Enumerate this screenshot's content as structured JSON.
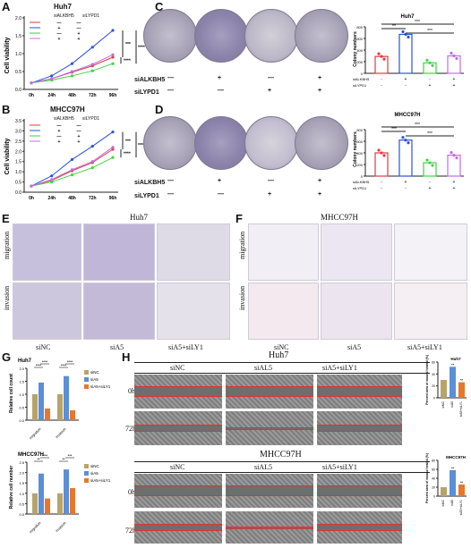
{
  "panels": [
    "A",
    "B",
    "C",
    "D",
    "E",
    "F",
    "G",
    "H"
  ],
  "A": {
    "title": "Huh7",
    "ylabel": "Cell viability",
    "legend_labels": [
      "siALKBH5",
      "siLYPD1"
    ],
    "legend_rows": [
      [
        "—",
        "—"
      ],
      [
        "+",
        "—"
      ],
      [
        "—",
        "+"
      ],
      [
        "+",
        "+"
      ]
    ],
    "sig": [
      "***",
      "****",
      "****"
    ]
  },
  "B": {
    "title": "MHCC97H",
    "ylabel": "Cell viability",
    "legend_labels": [
      "siALKBH5",
      "siLYPD1"
    ],
    "legend_rows": [
      [
        "—",
        "—"
      ],
      [
        "+",
        "—"
      ],
      [
        "—",
        "+"
      ],
      [
        "+",
        "+"
      ]
    ],
    "sig": [
      "***",
      "****",
      "****"
    ]
  },
  "C": {
    "row1": "siALKBH5",
    "row2": "siLYPD1",
    "row1_vals": [
      "—",
      "+",
      "—",
      "+"
    ],
    "row2_vals": [
      "—",
      "—",
      "+",
      "+"
    ],
    "chart_title": "Huh7",
    "ylabel": "Colony numbers",
    "sig": [
      "***",
      "**",
      "***"
    ]
  },
  "D": {
    "row1": "siALKBH5",
    "row2": "siLYPD1",
    "row1_vals": [
      "—",
      "+",
      "—",
      "+"
    ],
    "row2_vals": [
      "—",
      "—",
      "+",
      "+"
    ],
    "chart_title": "MHCC97H",
    "ylabel": "Colony numbers",
    "sig": [
      "***",
      "***",
      "***"
    ]
  },
  "E": {
    "title": "Huh7",
    "rows": [
      "migration",
      "invasion"
    ],
    "cols": [
      "siNC",
      "siA5",
      "siA5+siLY1"
    ]
  },
  "F": {
    "title": "MHCC97H",
    "rows": [
      "migration",
      "invasion"
    ],
    "cols": [
      "siNC",
      "siA5",
      "siA5+siLY1"
    ]
  },
  "G": {
    "legend": [
      "siNC",
      "siA5",
      "siA5+siLY1"
    ],
    "colors": [
      "#b8a36a",
      "#5b8fd6",
      "#e8772e"
    ]
  },
  "H": {
    "title1": "Huh7",
    "title2": "MHCC97H",
    "cols1": [
      "siNC",
      "siAL5",
      "siA5+siLY1"
    ],
    "cols2": [
      "siNC",
      "siAL5",
      "siA5+siLY1"
    ],
    "rows": [
      "0h",
      "72h"
    ],
    "ylabel": "Percent area of wound healed (%)",
    "xticks": [
      "siNC",
      "siA5",
      "siA5+siLY1"
    ]
  },
  "chart_data": [
    {
      "type": "line",
      "title": "Huh7",
      "categories": [
        "0h",
        "24h",
        "48h",
        "72h",
        "96h"
      ],
      "ylabel": "Cell viability",
      "ylim": [
        0,
        2.0
      ],
      "yticks": [
        "0.0",
        "0.5",
        "1.0",
        "1.5",
        "2.0"
      ],
      "series": [
        {
          "color": "#e23b3b",
          "values": [
            0.18,
            0.3,
            0.48,
            0.66,
            0.9
          ]
        },
        {
          "color": "#2e52d8",
          "values": [
            0.18,
            0.38,
            0.72,
            1.18,
            1.65
          ]
        },
        {
          "color": "#3fd43f",
          "values": [
            0.18,
            0.26,
            0.38,
            0.52,
            0.72
          ]
        },
        {
          "color": "#c46de0",
          "values": [
            0.18,
            0.3,
            0.5,
            0.7,
            0.97
          ]
        }
      ]
    },
    {
      "type": "line",
      "title": "MHCC97H",
      "categories": [
        "0h",
        "24h",
        "48h",
        "72h",
        "96h"
      ],
      "ylabel": "Cell viability",
      "ylim": [
        0,
        3.5
      ],
      "yticks": [
        "0.0",
        "0.5",
        "1.0",
        "1.5",
        "2.0",
        "2.5",
        "3.0",
        "3.5"
      ],
      "series": [
        {
          "color": "#e23b3b",
          "values": [
            0.3,
            0.58,
            1.05,
            1.45,
            2.1
          ]
        },
        {
          "color": "#2e52d8",
          "values": [
            0.3,
            0.8,
            1.6,
            2.25,
            2.95
          ]
        },
        {
          "color": "#3fd43f",
          "values": [
            0.3,
            0.5,
            0.85,
            1.2,
            1.7
          ]
        },
        {
          "color": "#c46de0",
          "values": [
            0.3,
            0.62,
            1.1,
            1.5,
            2.2
          ]
        }
      ]
    },
    {
      "type": "bar",
      "title": "Huh7",
      "ylabel": "Colony numbers",
      "ylim": [
        0,
        800
      ],
      "yticks": [
        "0",
        "200",
        "400",
        "600",
        "800"
      ],
      "rows": [
        "siALKBH5",
        "siLYPD1"
      ],
      "row_vals": [
        [
          "-",
          "+",
          "-",
          "+"
        ],
        [
          "-",
          "-",
          "+",
          "+"
        ]
      ],
      "values": [
        290,
        670,
        180,
        300
      ],
      "colors": [
        "#e23b3b",
        "#2e52d8",
        "#3fd43f",
        "#c46de0"
      ]
    },
    {
      "type": "bar",
      "title": "MHCC97H",
      "ylabel": "Colony numbers",
      "ylim": [
        0,
        800
      ],
      "yticks": [
        "0",
        "200",
        "400",
        "600",
        "800"
      ],
      "rows": [
        "siALKBH5",
        "siLYPD1"
      ],
      "row_vals": [
        [
          "-",
          "+",
          "-",
          "+"
        ],
        [
          "-",
          "-",
          "+",
          "+"
        ]
      ],
      "values": [
        400,
        620,
        230,
        360
      ],
      "colors": [
        "#e23b3b",
        "#2e52d8",
        "#3fd43f",
        "#c46de0"
      ]
    },
    {
      "type": "bar",
      "title": "Huh7",
      "ylabel": "Relative cell count",
      "ylim": [
        0,
        2.0
      ],
      "yticks": [
        "0.0",
        "0.5",
        "1.0",
        "1.5",
        "2.0"
      ],
      "categories": [
        "migration",
        "invasion"
      ],
      "series": [
        {
          "name": "siNC",
          "values": [
            1.0,
            1.0
          ]
        },
        {
          "name": "siA5",
          "values": [
            1.45,
            1.7
          ]
        },
        {
          "name": "siA5+siLY1",
          "values": [
            0.45,
            0.38
          ]
        }
      ],
      "sig": [
        "****",
        "****",
        "****",
        "****"
      ]
    },
    {
      "type": "bar",
      "title": "MHCC97H",
      "ylabel": "Relative cell number",
      "ylim": [
        0,
        2.5
      ],
      "yticks": [
        "0.0",
        "0.5",
        "1.0",
        "1.5",
        "2.0",
        "2.5"
      ],
      "categories": [
        "migration",
        "invasion"
      ],
      "series": [
        {
          "name": "siNC",
          "values": [
            1.0,
            1.0
          ]
        },
        {
          "name": "siA5",
          "values": [
            1.95,
            2.15
          ]
        },
        {
          "name": "siA5+siLY1",
          "values": [
            0.75,
            1.25
          ]
        }
      ],
      "sig": [
        "**",
        "****",
        "**",
        "***"
      ]
    },
    {
      "type": "bar",
      "title": "Huh7",
      "ylabel": "Percent area of wound healed (%)",
      "ylim": [
        0,
        60
      ],
      "yticks": [
        "0",
        "20",
        "40",
        "60"
      ],
      "categories": [
        "siNC",
        "siA5",
        "siA5+siLY1"
      ],
      "values": [
        30,
        52,
        26
      ],
      "colors": [
        "#b8a36a",
        "#5b8fd6",
        "#e8772e"
      ],
      "sig": [
        "**",
        "**"
      ]
    },
    {
      "type": "bar",
      "title": "MHCC97H",
      "ylabel": "Percent area of wound healed (%)",
      "ylim": [
        0,
        80
      ],
      "yticks": [
        "0",
        "20",
        "40",
        "60",
        "80"
      ],
      "categories": [
        "siNC",
        "siA5",
        "siA5+siLY1"
      ],
      "values": [
        20,
        58,
        26
      ],
      "colors": [
        "#b8a36a",
        "#5b8fd6",
        "#e8772e"
      ],
      "sig": [
        "**",
        "**"
      ]
    }
  ]
}
